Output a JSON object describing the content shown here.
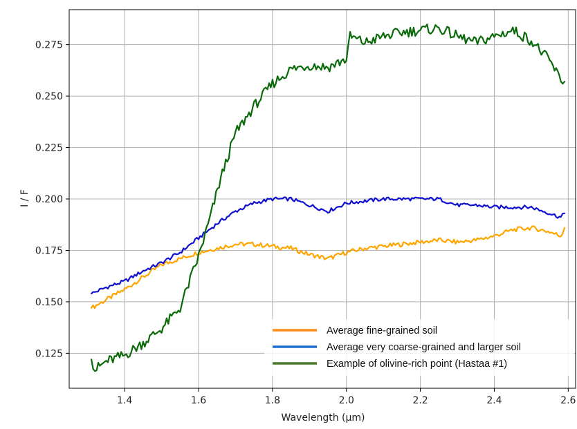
{
  "chart_data": {
    "type": "line",
    "title": "",
    "xlabel": "Wavelength (μm)",
    "ylabel": "I / F",
    "xlim": [
      1.25,
      2.62
    ],
    "ylim": [
      0.108,
      0.292
    ],
    "x_ticks": [
      1.4,
      1.6,
      1.8,
      2.0,
      2.2,
      2.4,
      2.6
    ],
    "x_tick_labels": [
      "1.4",
      "1.6",
      "1.8",
      "2.0",
      "2.2",
      "2.4",
      "2.6"
    ],
    "y_ticks": [
      0.125,
      0.15,
      0.175,
      0.2,
      0.225,
      0.25,
      0.275
    ],
    "y_tick_labels": [
      "0.125",
      "0.150",
      "0.175",
      "0.200",
      "0.225",
      "0.250",
      "0.275"
    ],
    "grid": true,
    "legend_position": "lower-right",
    "series": [
      {
        "name": "Average fine-grained soil",
        "color": "#ffa500",
        "legend_color": "#ff8c1a",
        "x": [
          1.31,
          1.35,
          1.4,
          1.45,
          1.5,
          1.55,
          1.6,
          1.65,
          1.7,
          1.75,
          1.8,
          1.85,
          1.9,
          1.95,
          2.0,
          2.05,
          2.1,
          2.15,
          2.2,
          2.25,
          2.3,
          2.35,
          2.4,
          2.45,
          2.5,
          2.55,
          2.58,
          2.59
        ],
        "y": [
          0.147,
          0.151,
          0.156,
          0.162,
          0.168,
          0.171,
          0.174,
          0.176,
          0.178,
          0.178,
          0.177,
          0.176,
          0.173,
          0.171,
          0.174,
          0.176,
          0.177,
          0.178,
          0.179,
          0.18,
          0.179,
          0.18,
          0.182,
          0.185,
          0.186,
          0.184,
          0.182,
          0.186
        ]
      },
      {
        "name": "Average very coarse-grained and larger soil",
        "color": "#1010d0",
        "legend_color": "#1f6fd0",
        "x": [
          1.31,
          1.35,
          1.4,
          1.45,
          1.5,
          1.55,
          1.6,
          1.65,
          1.7,
          1.75,
          1.8,
          1.85,
          1.9,
          1.95,
          2.0,
          2.05,
          2.1,
          2.15,
          2.2,
          2.25,
          2.3,
          2.35,
          2.4,
          2.45,
          2.5,
          2.55,
          2.58,
          2.59
        ],
        "y": [
          0.154,
          0.157,
          0.16,
          0.165,
          0.169,
          0.174,
          0.181,
          0.188,
          0.194,
          0.198,
          0.2,
          0.2,
          0.197,
          0.194,
          0.198,
          0.199,
          0.2,
          0.2,
          0.2,
          0.2,
          0.197,
          0.197,
          0.196,
          0.196,
          0.196,
          0.193,
          0.191,
          0.193
        ]
      },
      {
        "name": "Example of olivine-rich point (Hastaa #1)",
        "color": "#0a6a0a",
        "legend_color": "#4a7a2a",
        "x": [
          1.31,
          1.32,
          1.35,
          1.4,
          1.45,
          1.5,
          1.55,
          1.6,
          1.63,
          1.66,
          1.7,
          1.75,
          1.8,
          1.85,
          1.9,
          1.95,
          2.0,
          2.01,
          2.05,
          2.1,
          2.15,
          2.2,
          2.25,
          2.3,
          2.35,
          2.4,
          2.45,
          2.5,
          2.55,
          2.58,
          2.59
        ],
        "y": [
          0.122,
          0.117,
          0.121,
          0.124,
          0.13,
          0.137,
          0.147,
          0.172,
          0.19,
          0.21,
          0.232,
          0.245,
          0.256,
          0.263,
          0.265,
          0.264,
          0.268,
          0.279,
          0.276,
          0.279,
          0.281,
          0.282,
          0.283,
          0.279,
          0.276,
          0.279,
          0.282,
          0.277,
          0.267,
          0.258,
          0.257
        ]
      }
    ]
  }
}
